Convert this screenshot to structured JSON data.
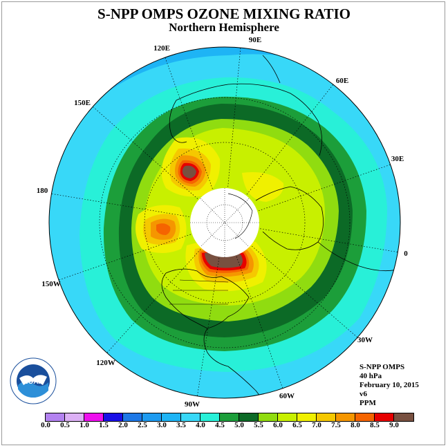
{
  "title": "S-NPP OMPS OZONE MIXING RATIO",
  "subtitle": "Northern Hemisphere",
  "longitude_labels": [
    "90E",
    "60E",
    "30E",
    "0",
    "30W",
    "60W",
    "90W",
    "120W",
    "150W",
    "180",
    "150E",
    "120E"
  ],
  "info": {
    "instrument": "S-NPP OMPS",
    "level": "40 hPa",
    "date": "February 10, 2015",
    "version": "v6",
    "units": "PPM"
  },
  "logo_text": "NOAA",
  "colorbar": {
    "labels": [
      "0.0",
      "0.5",
      "1.0",
      "1.5",
      "2.0",
      "2.5",
      "3.0",
      "3.5",
      "4.0",
      "4.5",
      "5.0",
      "5.5",
      "6.0",
      "6.5",
      "7.0",
      "7.5",
      "8.0",
      "8.5",
      "9.0"
    ],
    "colors": [
      "#b382f0",
      "#dcb0f5",
      "#ee10ee",
      "#1a10e6",
      "#1e78e6",
      "#1e9bf0",
      "#1eb4f5",
      "#38d8f8",
      "#28f0d8",
      "#1c9e3a",
      "#0c6a26",
      "#90dc10",
      "#c8f000",
      "#f0f000",
      "#f5c800",
      "#f59600",
      "#f56400",
      "#e60000",
      "#785040"
    ]
  }
}
